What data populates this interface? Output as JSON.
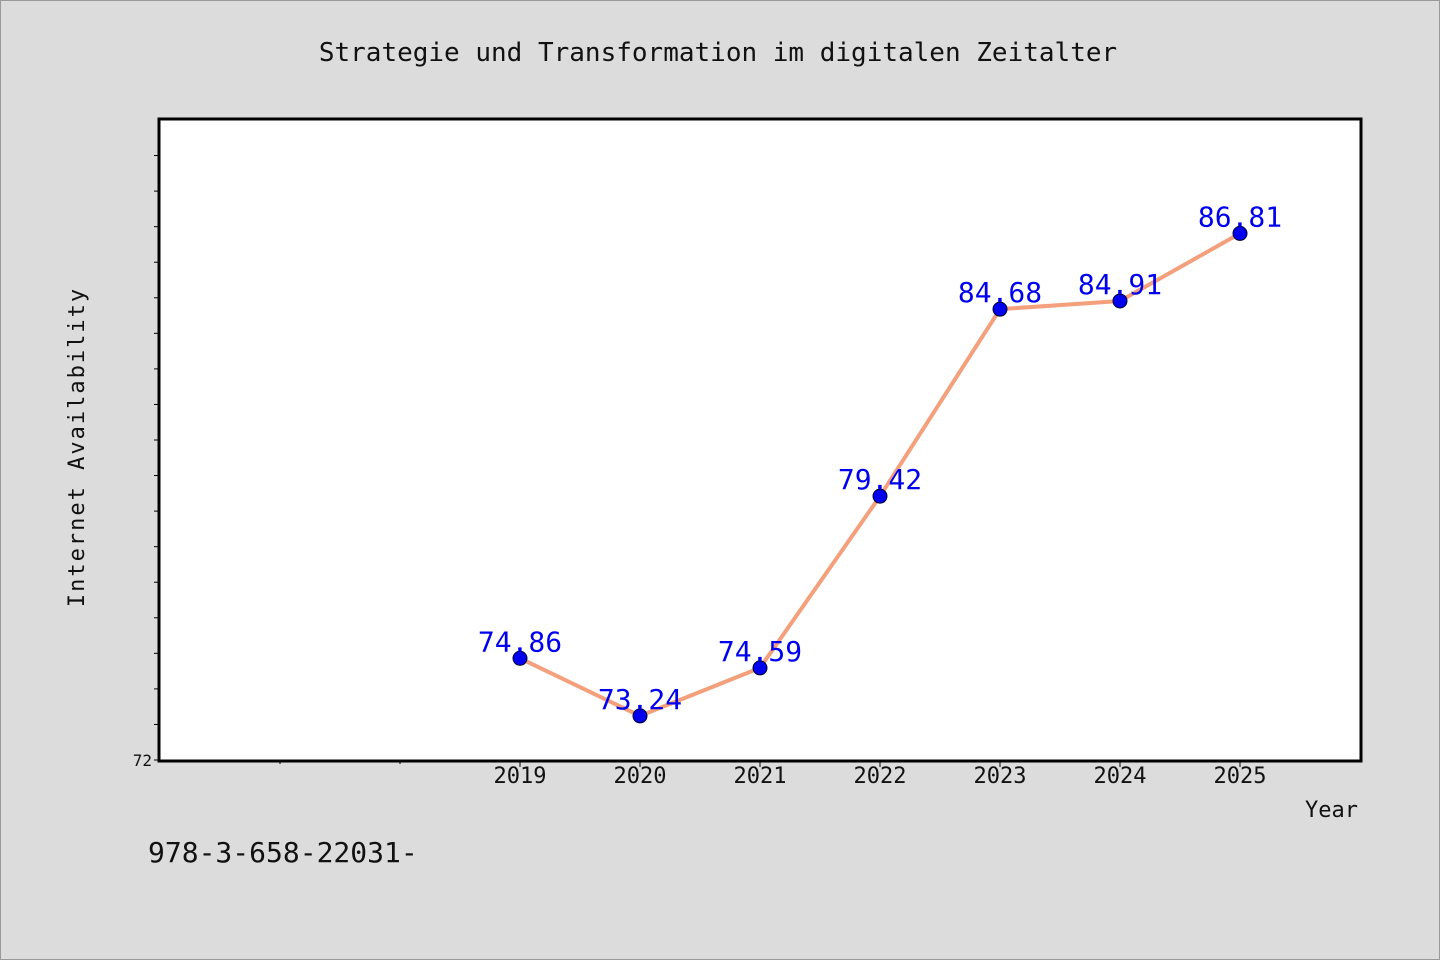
{
  "chart_data": {
    "type": "line",
    "title": "Strategie und Transformation im digitalen Zeitalter",
    "xlabel": "Year",
    "ylabel": "Internet Availability",
    "x": [
      2019,
      2020,
      2021,
      2022,
      2023,
      2024,
      2025
    ],
    "series": [
      {
        "values": [
          74.86,
          73.24,
          74.59,
          79.42,
          84.68,
          84.91,
          86.81
        ],
        "labels": [
          "74.86",
          "73.24",
          "74.59",
          "79.42",
          "84.68",
          "84.91",
          "86.81"
        ],
        "color": "#f4a07c",
        "marker_color": "#0000ee"
      }
    ],
    "xlim": [
      2016,
      2026
    ],
    "ylim": [
      72,
      90
    ],
    "y_tick_labels": [
      "72"
    ],
    "grid": false,
    "legend": "none"
  },
  "footer": {
    "text": "978-3-658-22031-"
  },
  "colors": {
    "background": "#dcdcdc",
    "plot_background": "#ffffff",
    "axis": "#000000",
    "data_label": "#0000ee"
  }
}
